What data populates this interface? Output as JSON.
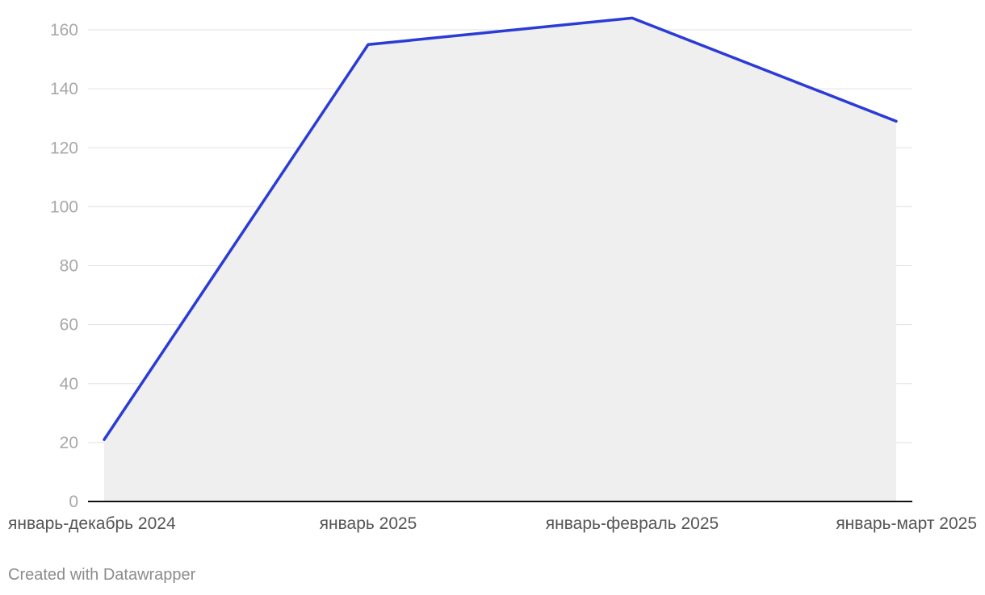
{
  "chart_data": {
    "type": "area",
    "categories": [
      "январь-декабрь 2024",
      "январь 2025",
      "январь-февраль 2025",
      "январь-март 2025"
    ],
    "values": [
      21,
      155,
      164,
      129
    ],
    "ylim": [
      0,
      160
    ],
    "yticks": [
      0,
      20,
      40,
      60,
      80,
      100,
      120,
      140,
      160
    ],
    "grid": true,
    "line_color": "#2b3bd6",
    "area_color": "#efefef",
    "title": "",
    "xlabel": "",
    "ylabel": ""
  },
  "footer": {
    "credit": "Created with Datawrapper"
  }
}
